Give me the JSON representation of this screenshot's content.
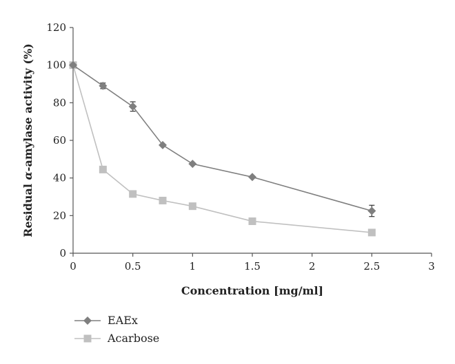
{
  "chart_data": {
    "type": "line",
    "xlabel": "Concentration [mg/ml]",
    "ylabel_prefix": "Residual ",
    "ylabel_symbol": "α",
    "ylabel_suffix": "-amylase activity (%)",
    "xlim": [
      0,
      3
    ],
    "ylim": [
      0,
      120
    ],
    "x_ticks": [
      "0",
      "0.5",
      "1",
      "1.5",
      "2",
      "2.5",
      "3"
    ],
    "x_tick_values": [
      0,
      0.5,
      1,
      1.5,
      2,
      2.5,
      3
    ],
    "y_ticks": [
      "0",
      "20",
      "40",
      "60",
      "80",
      "100",
      "120"
    ],
    "y_tick_values": [
      0,
      20,
      40,
      60,
      80,
      100,
      120
    ],
    "grid": false,
    "legend_position": "bottom-left",
    "series": [
      {
        "name": "EAEx",
        "marker": "diamond",
        "color": "#7f7f7f",
        "x": [
          0,
          0.25,
          0.5,
          0.75,
          1,
          1.5,
          2.5
        ],
        "y": [
          100,
          89,
          78,
          57.5,
          47.5,
          40.5,
          22.5
        ],
        "error": [
          0,
          1.5,
          2.5,
          0,
          0,
          0,
          3
        ]
      },
      {
        "name": "Acarbose",
        "marker": "square",
        "color": "#c0c0c0",
        "x": [
          0,
          0.25,
          0.5,
          0.75,
          1,
          1.5,
          2.5
        ],
        "y": [
          100,
          44.5,
          31.5,
          28,
          25,
          17,
          11
        ],
        "error": [
          0,
          0,
          0,
          0,
          0,
          0,
          0
        ]
      }
    ]
  }
}
